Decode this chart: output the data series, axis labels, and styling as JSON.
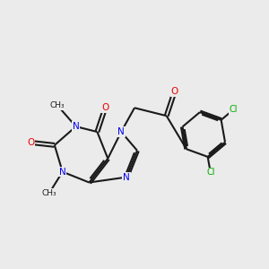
{
  "bg_color": "#ebebeb",
  "bond_color": "#1a1a1a",
  "N_color": "#0000ee",
  "O_color": "#ee0000",
  "Cl_color": "#00aa00",
  "line_width": 1.5,
  "font_size_atom": 7.5,
  "font_size_methyl": 6.5,
  "font_size_cl": 7.0,
  "xlim": [
    0.0,
    10.0
  ],
  "ylim": [
    0.5,
    10.5
  ],
  "figsize": [
    3.0,
    3.0
  ],
  "dpi": 100
}
